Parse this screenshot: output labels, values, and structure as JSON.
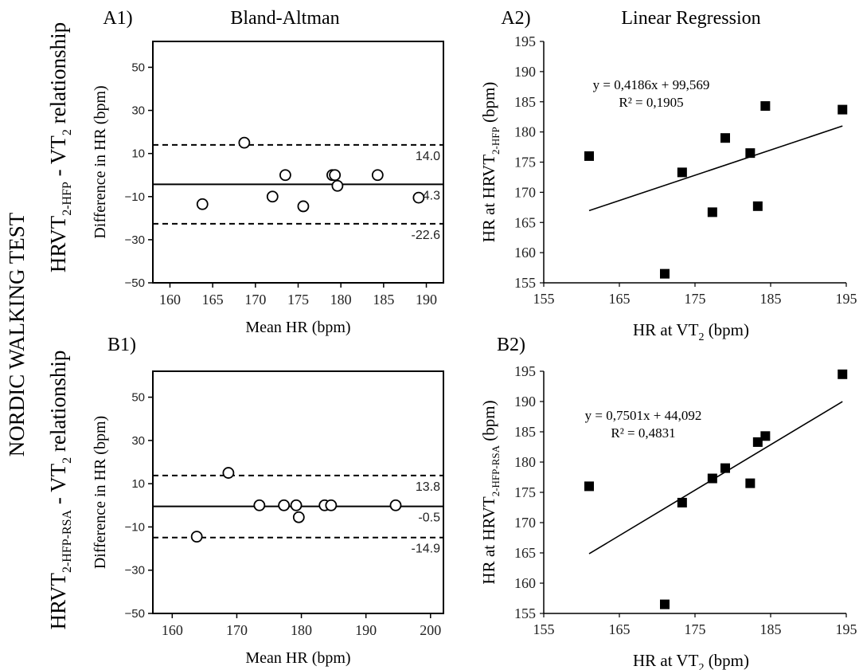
{
  "figure": {
    "side_title": "NORDIC WALKING TEST",
    "row_labels": [
      {
        "main": "HRVT",
        "sub": "2-HFP",
        "rest": " - VT",
        "rest_sub": "2",
        "tail": " relationship"
      },
      {
        "main": "HRVT",
        "sub": "2-HFP-RSA",
        "rest": " - VT",
        "rest_sub": "2",
        "tail": " relationship"
      }
    ],
    "column_titles": [
      "Bland-Altman",
      "Linear Regression"
    ]
  },
  "chart_data": [
    {
      "id": "A1",
      "panel_label": "A1)",
      "type": "scatter",
      "xlabel": "Mean HR (bpm)",
      "ylabel": "Difference in HR (bpm)",
      "xlim": [
        158,
        192
      ],
      "ylim": [
        -50,
        62
      ],
      "xticks": [
        160,
        165,
        170,
        175,
        180,
        185,
        190
      ],
      "yticks": [
        -50,
        -30,
        -10,
        10,
        30,
        50
      ],
      "points": [
        {
          "x": 168.7,
          "y": 15
        },
        {
          "x": 173.5,
          "y": 0
        },
        {
          "x": 179.0,
          "y": 0
        },
        {
          "x": 179.3,
          "y": 0
        },
        {
          "x": 184.3,
          "y": 0
        },
        {
          "x": 172.0,
          "y": -10
        },
        {
          "x": 179.6,
          "y": -5
        },
        {
          "x": 175.6,
          "y": -14.5
        },
        {
          "x": 163.8,
          "y": -13.5
        },
        {
          "x": 189.1,
          "y": -10.5
        }
      ],
      "lines": [
        {
          "y": 14.0,
          "style": "dashed",
          "label": "14.0"
        },
        {
          "y": -4.3,
          "style": "solid",
          "label": "-4.3"
        },
        {
          "y": -22.6,
          "style": "dashed",
          "label": "-22.6"
        }
      ]
    },
    {
      "id": "A2",
      "panel_label": "A2)",
      "type": "scatter",
      "xlabel": "HR at VT",
      "xlabel_sub": "2",
      "xlabel_tail": " (bpm)",
      "ylabel": "HR at HRVT",
      "ylabel_sub": "2-HFP",
      "ylabel_tail": " (bpm)",
      "xlim": [
        155,
        195
      ],
      "ylim": [
        155,
        195
      ],
      "xticks": [
        155,
        165,
        175,
        185,
        195
      ],
      "yticks": [
        155,
        160,
        165,
        170,
        175,
        180,
        185,
        190,
        195
      ],
      "points": [
        {
          "x": 161,
          "y": 176
        },
        {
          "x": 171,
          "y": 156.5
        },
        {
          "x": 173.3,
          "y": 173.3
        },
        {
          "x": 177.3,
          "y": 166.7
        },
        {
          "x": 179,
          "y": 179
        },
        {
          "x": 182.3,
          "y": 176.5
        },
        {
          "x": 183.3,
          "y": 167.7
        },
        {
          "x": 184.3,
          "y": 184.3
        },
        {
          "x": 194.5,
          "y": 183.7
        }
      ],
      "trendline": {
        "slope": 0.4186,
        "intercept": 99.569,
        "x_range": [
          161,
          194.5
        ]
      },
      "equation": "y = 0,4186x + 99,569",
      "r2": "R² = 0,1905"
    },
    {
      "id": "B1",
      "panel_label": "B1)",
      "type": "scatter",
      "xlabel": "Mean HR (bpm)",
      "ylabel": "Difference in HR (bpm)",
      "xlim": [
        157,
        202
      ],
      "ylim": [
        -50,
        62
      ],
      "xticks": [
        160,
        170,
        180,
        190,
        200
      ],
      "yticks": [
        -50,
        -30,
        -10,
        10,
        30,
        50
      ],
      "points": [
        {
          "x": 168.7,
          "y": 15
        },
        {
          "x": 173.5,
          "y": 0
        },
        {
          "x": 177.3,
          "y": 0
        },
        {
          "x": 179.2,
          "y": 0
        },
        {
          "x": 183.6,
          "y": 0
        },
        {
          "x": 184.6,
          "y": 0
        },
        {
          "x": 194.6,
          "y": 0
        },
        {
          "x": 179.6,
          "y": -5.5
        },
        {
          "x": 163.8,
          "y": -14.5
        }
      ],
      "lines": [
        {
          "y": 13.8,
          "style": "dashed",
          "label": "13.8"
        },
        {
          "y": -0.5,
          "style": "solid",
          "label": "-0.5"
        },
        {
          "y": -14.9,
          "style": "dashed",
          "label": "-14.9"
        }
      ]
    },
    {
      "id": "B2",
      "panel_label": "B2)",
      "type": "scatter",
      "xlabel": "HR at VT",
      "xlabel_sub": "2",
      "xlabel_tail": " (bpm)",
      "ylabel": "HR at HRVT",
      "ylabel_sub": "2-HFP-RSA",
      "ylabel_tail": " (bpm)",
      "xlim": [
        155,
        195
      ],
      "ylim": [
        155,
        195
      ],
      "xticks": [
        155,
        165,
        175,
        185,
        195
      ],
      "yticks": [
        155,
        160,
        165,
        170,
        175,
        180,
        185,
        190,
        195
      ],
      "points": [
        {
          "x": 161,
          "y": 176
        },
        {
          "x": 171,
          "y": 156.5
        },
        {
          "x": 173.3,
          "y": 173.3
        },
        {
          "x": 177.3,
          "y": 177.3
        },
        {
          "x": 179,
          "y": 179
        },
        {
          "x": 182.3,
          "y": 176.5
        },
        {
          "x": 183.3,
          "y": 183.3
        },
        {
          "x": 184.3,
          "y": 184.3
        },
        {
          "x": 194.5,
          "y": 194.5
        }
      ],
      "trendline": {
        "slope": 0.7501,
        "intercept": 44.092,
        "x_range": [
          161,
          194.5
        ]
      },
      "equation": "y = 0,7501x + 44,092",
      "r2": "R² = 0,4831"
    }
  ]
}
